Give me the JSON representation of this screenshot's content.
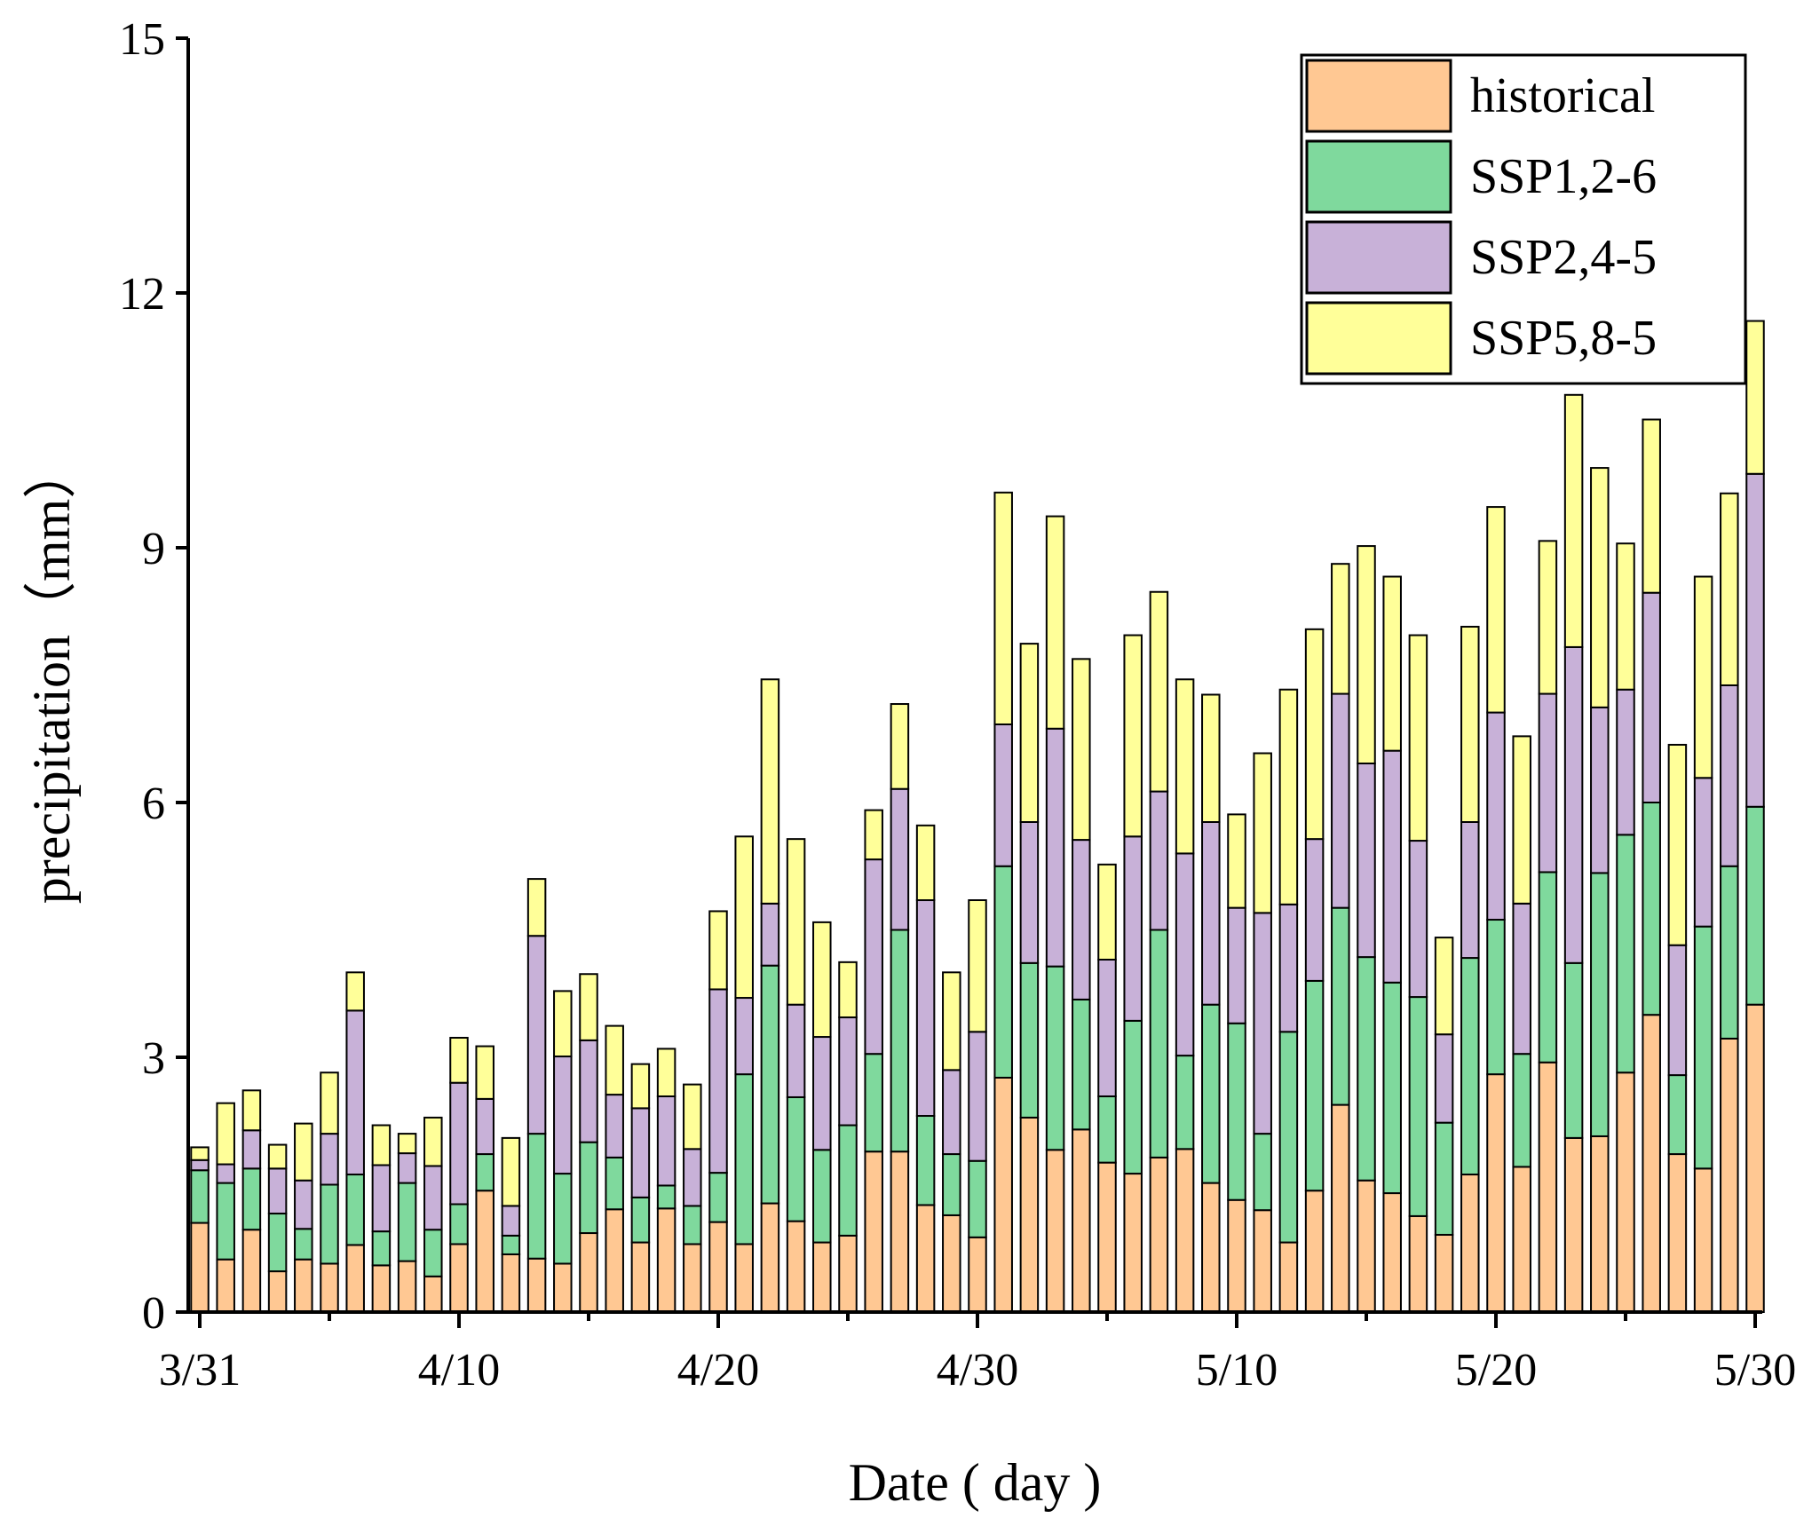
{
  "chart_data": {
    "type": "bar",
    "stacked": true,
    "title": "",
    "xlabel": "Date ( day )",
    "ylabel": "precipitation（mm）",
    "ylim": [
      0,
      15
    ],
    "yticks": [
      0,
      3,
      6,
      9,
      12,
      15
    ],
    "xtick_labels": [
      "3/31",
      "4/10",
      "4/20",
      "4/30",
      "5/10",
      "5/20",
      "5/30"
    ],
    "xtick_days": [
      0,
      10,
      20,
      30,
      40,
      50,
      60
    ],
    "grid": false,
    "legend_position": "top-right",
    "categories": [
      "3/31",
      "4/1",
      "4/2",
      "4/3",
      "4/4",
      "4/5",
      "4/6",
      "4/7",
      "4/8",
      "4/9",
      "4/10",
      "4/11",
      "4/12",
      "4/13",
      "4/14",
      "4/15",
      "4/16",
      "4/17",
      "4/18",
      "4/19",
      "4/20",
      "4/21",
      "4/22",
      "4/23",
      "4/24",
      "4/25",
      "4/26",
      "4/27",
      "4/28",
      "4/29",
      "4/30",
      "5/1",
      "5/2",
      "5/3",
      "5/4",
      "5/5",
      "5/6",
      "5/7",
      "5/8",
      "5/9",
      "5/10",
      "5/11",
      "5/12",
      "5/13",
      "5/14",
      "5/15",
      "5/16",
      "5/17",
      "5/18",
      "5/19",
      "5/20",
      "5/21",
      "5/22",
      "5/23",
      "5/24",
      "5/25",
      "5/26",
      "5/27",
      "5/28",
      "5/29",
      "5/30"
    ],
    "series": [
      {
        "name": "historical",
        "color": "#FFC893",
        "values": [
          1.05,
          0.62,
          0.97,
          0.48,
          0.62,
          0.57,
          0.79,
          0.55,
          0.6,
          0.42,
          0.8,
          1.43,
          0.68,
          0.63,
          0.57,
          0.93,
          1.21,
          0.82,
          1.22,
          0.8,
          1.06,
          0.8,
          1.28,
          1.07,
          0.82,
          0.9,
          1.89,
          1.89,
          1.26,
          1.14,
          0.88,
          2.76,
          2.29,
          1.91,
          2.15,
          1.76,
          1.63,
          1.82,
          1.92,
          1.52,
          1.32,
          1.2,
          0.82,
          1.43,
          2.44,
          1.55,
          1.4,
          1.13,
          0.91,
          1.62,
          2.8,
          1.71,
          2.94,
          2.05,
          2.07,
          2.82,
          3.5,
          1.86,
          1.69,
          3.22,
          3.62
        ]
      },
      {
        "name": "SSP1,2-6",
        "color": "#7FD99D",
        "values": [
          0.62,
          0.9,
          0.72,
          0.68,
          0.36,
          0.93,
          0.83,
          0.4,
          0.92,
          0.55,
          0.47,
          0.43,
          0.22,
          1.47,
          1.06,
          1.07,
          0.61,
          0.53,
          0.27,
          0.45,
          0.58,
          2.0,
          2.8,
          1.46,
          1.09,
          1.3,
          1.15,
          2.61,
          1.05,
          0.72,
          0.9,
          2.49,
          1.82,
          2.16,
          1.53,
          0.78,
          1.8,
          2.68,
          1.1,
          2.1,
          2.08,
          0.9,
          2.48,
          2.47,
          2.32,
          2.63,
          2.48,
          2.58,
          1.32,
          2.55,
          1.82,
          1.33,
          2.24,
          2.06,
          3.1,
          2.8,
          2.5,
          0.93,
          2.85,
          2.03,
          2.33
        ]
      },
      {
        "name": "SSP2,4-5",
        "color": "#C8B1D8",
        "values": [
          0.12,
          0.22,
          0.45,
          0.53,
          0.57,
          0.6,
          1.93,
          0.78,
          0.35,
          0.75,
          1.43,
          0.65,
          0.35,
          2.33,
          1.38,
          1.2,
          0.74,
          1.05,
          1.05,
          0.67,
          2.16,
          0.9,
          0.73,
          1.09,
          1.33,
          1.27,
          2.29,
          1.66,
          2.54,
          0.99,
          1.52,
          1.67,
          1.66,
          2.8,
          1.88,
          1.61,
          2.17,
          1.63,
          2.38,
          2.15,
          1.36,
          2.6,
          1.5,
          1.67,
          2.52,
          2.28,
          2.73,
          1.84,
          1.04,
          1.6,
          2.44,
          1.77,
          2.1,
          3.72,
          1.95,
          1.71,
          2.47,
          1.53,
          1.75,
          2.13,
          3.92
        ]
      },
      {
        "name": "SSP5,8-5",
        "color": "#FFFF99",
        "values": [
          0.15,
          0.72,
          0.47,
          0.28,
          0.67,
          0.72,
          0.45,
          0.47,
          0.23,
          0.57,
          0.53,
          0.62,
          0.8,
          0.67,
          0.77,
          0.78,
          0.81,
          0.52,
          0.56,
          0.76,
          0.92,
          1.9,
          2.64,
          1.95,
          1.35,
          0.65,
          0.58,
          1.0,
          0.88,
          1.15,
          1.55,
          2.73,
          2.1,
          2.5,
          2.13,
          1.12,
          2.37,
          2.35,
          2.05,
          1.5,
          1.1,
          1.88,
          2.53,
          2.47,
          1.53,
          2.56,
          2.05,
          2.42,
          1.14,
          2.3,
          2.42,
          1.97,
          1.8,
          2.97,
          2.82,
          1.72,
          2.04,
          2.36,
          2.37,
          2.26,
          1.8
        ]
      }
    ]
  }
}
